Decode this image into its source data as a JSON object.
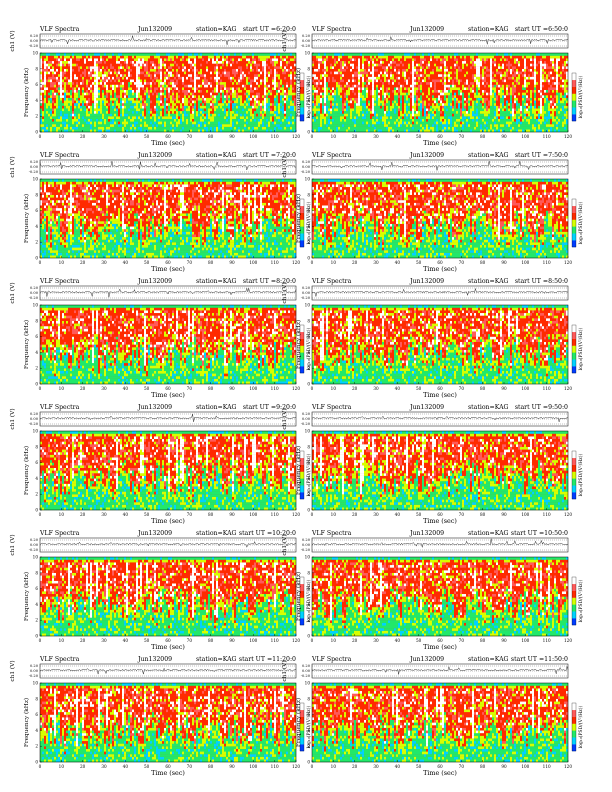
{
  "page": {
    "heading": "VLF Spectra",
    "time_axis_label": "Time (sec)",
    "amplitude_axis_label": "ch1 (V)",
    "frequency_axis_label": "Frequency (kHz)",
    "colorbar_label": "log₁₀(PSD/(V²/Hz))"
  },
  "chart_data": [
    {
      "type": "heatmap",
      "title": "VLF Spectra",
      "date": "Jun132009",
      "station": "station=KAG",
      "start_label": "start UT =6:20:0",
      "xlabel": "Time (sec)",
      "ylabel": "Frequency (kHz)",
      "top_ylabel": "ch1 (V)",
      "colorbar_label": "log₁₀(PSD/(V²/Hz))",
      "xlim": [
        0,
        120
      ],
      "xticks": [
        0,
        10,
        20,
        30,
        40,
        50,
        60,
        70,
        80,
        90,
        100,
        110,
        120
      ],
      "ylim": [
        0,
        10
      ],
      "yticks": [
        0,
        2,
        4,
        6,
        8,
        10
      ],
      "waveform_yticks": [
        "0.20",
        "0.00",
        "-0.20"
      ],
      "colors": [
        "#003cff",
        "#00d2ff",
        "#22e86a",
        "#d7ff00",
        "#ff2a00",
        "#ff5a5a",
        "#ffffff"
      ]
    },
    {
      "type": "heatmap",
      "title": "VLF Spectra",
      "date": "Jun132009",
      "station": "station=KAG",
      "start_label": "start UT =6:50:0",
      "xlabel": "Time (sec)",
      "ylabel": "Frequency (kHz)",
      "top_ylabel": "ch1 (V)",
      "colorbar_label": "log₁₀(PSD/(V²/Hz))",
      "xlim": [
        0,
        120
      ],
      "xticks": [
        0,
        10,
        20,
        30,
        40,
        50,
        60,
        70,
        80,
        90,
        100,
        110,
        120
      ],
      "ylim": [
        0,
        10
      ],
      "yticks": [
        0,
        2,
        4,
        6,
        8,
        10
      ],
      "waveform_yticks": [
        "0.20",
        "0.00",
        "-0.20"
      ],
      "colors": [
        "#003cff",
        "#00d2ff",
        "#22e86a",
        "#d7ff00",
        "#ff2a00",
        "#ff5a5a",
        "#ffffff"
      ]
    },
    {
      "type": "heatmap",
      "title": "VLF Spectra",
      "date": "Jun132009",
      "station": "station=KAG",
      "start_label": "start UT =7:20:0",
      "xlabel": "Time (sec)",
      "ylabel": "Frequency (kHz)",
      "top_ylabel": "ch1 (V)",
      "colorbar_label": "log₁₀(PSD/(V²/Hz))",
      "xlim": [
        0,
        120
      ],
      "xticks": [
        0,
        10,
        20,
        30,
        40,
        50,
        60,
        70,
        80,
        90,
        100,
        110,
        120
      ],
      "ylim": [
        0,
        10
      ],
      "yticks": [
        0,
        2,
        4,
        6,
        8,
        10
      ],
      "waveform_yticks": [
        "0.20",
        "0.00",
        "-0.20"
      ],
      "colors": [
        "#003cff",
        "#00d2ff",
        "#22e86a",
        "#d7ff00",
        "#ff2a00",
        "#ff5a5a",
        "#ffffff"
      ]
    },
    {
      "type": "heatmap",
      "title": "VLF Spectra",
      "date": "Jun132009",
      "station": "station=KAG",
      "start_label": "start UT =7:50:0",
      "xlabel": "Time (sec)",
      "ylabel": "Frequency (kHz)",
      "top_ylabel": "ch1 (V)",
      "colorbar_label": "log₁₀(PSD/(V²/Hz))",
      "xlim": [
        0,
        120
      ],
      "xticks": [
        0,
        10,
        20,
        30,
        40,
        50,
        60,
        70,
        80,
        90,
        100,
        110,
        120
      ],
      "ylim": [
        0,
        10
      ],
      "yticks": [
        0,
        2,
        4,
        6,
        8,
        10
      ],
      "waveform_yticks": [
        "0.20",
        "0.00",
        "-0.20"
      ],
      "colors": [
        "#003cff",
        "#00d2ff",
        "#22e86a",
        "#d7ff00",
        "#ff2a00",
        "#ff5a5a",
        "#ffffff"
      ]
    },
    {
      "type": "heatmap",
      "title": "VLF Spectra",
      "date": "Jun132009",
      "station": "station=KAG",
      "start_label": "start UT =8:20:0",
      "xlabel": "Time (sec)",
      "ylabel": "Frequency (kHz)",
      "top_ylabel": "ch1 (V)",
      "colorbar_label": "log₁₀(PSD/(V²/Hz))",
      "xlim": [
        0,
        120
      ],
      "xticks": [
        0,
        10,
        20,
        30,
        40,
        50,
        60,
        70,
        80,
        90,
        100,
        110,
        120
      ],
      "ylim": [
        0,
        10
      ],
      "yticks": [
        0,
        2,
        4,
        6,
        8,
        10
      ],
      "waveform_yticks": [
        "0.20",
        "0.00",
        "-0.20"
      ],
      "colors": [
        "#003cff",
        "#00d2ff",
        "#22e86a",
        "#d7ff00",
        "#ff2a00",
        "#ff5a5a",
        "#ffffff"
      ]
    },
    {
      "type": "heatmap",
      "title": "VLF Spectra",
      "date": "Jun132009",
      "station": "station=KAG",
      "start_label": "start UT =8:50:0",
      "xlabel": "Time (sec)",
      "ylabel": "Frequency (kHz)",
      "top_ylabel": "ch1 (V)",
      "colorbar_label": "log₁₀(PSD/(V²/Hz))",
      "xlim": [
        0,
        120
      ],
      "xticks": [
        0,
        10,
        20,
        30,
        40,
        50,
        60,
        70,
        80,
        90,
        100,
        110,
        120
      ],
      "ylim": [
        0,
        10
      ],
      "yticks": [
        0,
        2,
        4,
        6,
        8,
        10
      ],
      "waveform_yticks": [
        "0.20",
        "0.00",
        "-0.20"
      ],
      "colors": [
        "#003cff",
        "#00d2ff",
        "#22e86a",
        "#d7ff00",
        "#ff2a00",
        "#ff5a5a",
        "#ffffff"
      ]
    },
    {
      "type": "heatmap",
      "title": "VLF Spectra",
      "date": "Jun132009",
      "station": "station=KAG",
      "start_label": "start UT =9:20:0",
      "xlabel": "Time (sec)",
      "ylabel": "Frequency (kHz)",
      "top_ylabel": "ch1 (V)",
      "colorbar_label": "log₁₀(PSD/(V²/Hz))",
      "xlim": [
        0,
        120
      ],
      "xticks": [
        0,
        10,
        20,
        30,
        40,
        50,
        60,
        70,
        80,
        90,
        100,
        110,
        120
      ],
      "ylim": [
        0,
        10
      ],
      "yticks": [
        0,
        2,
        4,
        6,
        8,
        10
      ],
      "waveform_yticks": [
        "0.20",
        "0.00",
        "-0.20"
      ],
      "colors": [
        "#003cff",
        "#00d2ff",
        "#22e86a",
        "#d7ff00",
        "#ff2a00",
        "#ff5a5a",
        "#ffffff"
      ]
    },
    {
      "type": "heatmap",
      "title": "VLF Spectra",
      "date": "Jun132009",
      "station": "station=KAG",
      "start_label": "start UT =9:50:0",
      "xlabel": "Time (sec)",
      "ylabel": "Frequency (kHz)",
      "top_ylabel": "ch1 (V)",
      "colorbar_label": "log₁₀(PSD/(V²/Hz))",
      "xlim": [
        0,
        120
      ],
      "xticks": [
        0,
        10,
        20,
        30,
        40,
        50,
        60,
        70,
        80,
        90,
        100,
        110,
        120
      ],
      "ylim": [
        0,
        10
      ],
      "yticks": [
        0,
        2,
        4,
        6,
        8,
        10
      ],
      "waveform_yticks": [
        "0.20",
        "0.00",
        "-0.20"
      ],
      "colors": [
        "#003cff",
        "#00d2ff",
        "#22e86a",
        "#d7ff00",
        "#ff2a00",
        "#ff5a5a",
        "#ffffff"
      ]
    },
    {
      "type": "heatmap",
      "title": "VLF Spectra",
      "date": "Jun132009",
      "station": "station=KAG",
      "start_label": "start UT =10:20:0",
      "xlabel": "Time (sec)",
      "ylabel": "Frequency (kHz)",
      "top_ylabel": "ch1 (V)",
      "colorbar_label": "log₁₀(PSD/(V²/Hz))",
      "xlim": [
        0,
        120
      ],
      "xticks": [
        0,
        10,
        20,
        30,
        40,
        50,
        60,
        70,
        80,
        90,
        100,
        110,
        120
      ],
      "ylim": [
        0,
        10
      ],
      "yticks": [
        0,
        2,
        4,
        6,
        8,
        10
      ],
      "waveform_yticks": [
        "0.20",
        "0.00",
        "-0.20"
      ],
      "colors": [
        "#003cff",
        "#00d2ff",
        "#22e86a",
        "#d7ff00",
        "#ff2a00",
        "#ff5a5a",
        "#ffffff"
      ]
    },
    {
      "type": "heatmap",
      "title": "VLF Spectra",
      "date": "Jun132009",
      "station": "station=KAG",
      "start_label": "start UT =10:50:0",
      "xlabel": "Time (sec)",
      "ylabel": "Frequency (kHz)",
      "top_ylabel": "ch1 (V)",
      "colorbar_label": "log₁₀(PSD/(V²/Hz))",
      "xlim": [
        0,
        120
      ],
      "xticks": [
        0,
        10,
        20,
        30,
        40,
        50,
        60,
        70,
        80,
        90,
        100,
        110,
        120
      ],
      "ylim": [
        0,
        10
      ],
      "yticks": [
        0,
        2,
        4,
        6,
        8,
        10
      ],
      "waveform_yticks": [
        "0.20",
        "0.00",
        "-0.20"
      ],
      "colors": [
        "#003cff",
        "#00d2ff",
        "#22e86a",
        "#d7ff00",
        "#ff2a00",
        "#ff5a5a",
        "#ffffff"
      ]
    },
    {
      "type": "heatmap",
      "title": "VLF Spectra",
      "date": "Jun132009",
      "station": "station=KAG",
      "start_label": "start UT =11:20:0",
      "xlabel": "Time (sec)",
      "ylabel": "Frequency (kHz)",
      "top_ylabel": "ch1 (V)",
      "colorbar_label": "log₁₀(PSD/(V²/Hz))",
      "xlim": [
        0,
        120
      ],
      "xticks": [
        0,
        10,
        20,
        30,
        40,
        50,
        60,
        70,
        80,
        90,
        100,
        110,
        120
      ],
      "ylim": [
        0,
        10
      ],
      "yticks": [
        0,
        2,
        4,
        6,
        8,
        10
      ],
      "waveform_yticks": [
        "0.20",
        "0.00",
        "-0.20"
      ],
      "colors": [
        "#003cff",
        "#00d2ff",
        "#22e86a",
        "#d7ff00",
        "#ff2a00",
        "#ff5a5a",
        "#ffffff"
      ]
    },
    {
      "type": "heatmap",
      "title": "VLF Spectra",
      "date": "Jun132009",
      "station": "station=KAG",
      "start_label": "start UT =11:50:0",
      "xlabel": "Time (sec)",
      "ylabel": "Frequency (kHz)",
      "top_ylabel": "ch1 (V)",
      "colorbar_label": "log₁₀(PSD/(V²/Hz))",
      "xlim": [
        0,
        120
      ],
      "xticks": [
        0,
        10,
        20,
        30,
        40,
        50,
        60,
        70,
        80,
        90,
        100,
        110,
        120
      ],
      "ylim": [
        0,
        10
      ],
      "yticks": [
        0,
        2,
        4,
        6,
        8,
        10
      ],
      "waveform_yticks": [
        "0.20",
        "0.00",
        "-0.20"
      ],
      "colors": [
        "#003cff",
        "#00d2ff",
        "#22e86a",
        "#d7ff00",
        "#ff2a00",
        "#ff5a5a",
        "#ffffff"
      ]
    }
  ]
}
